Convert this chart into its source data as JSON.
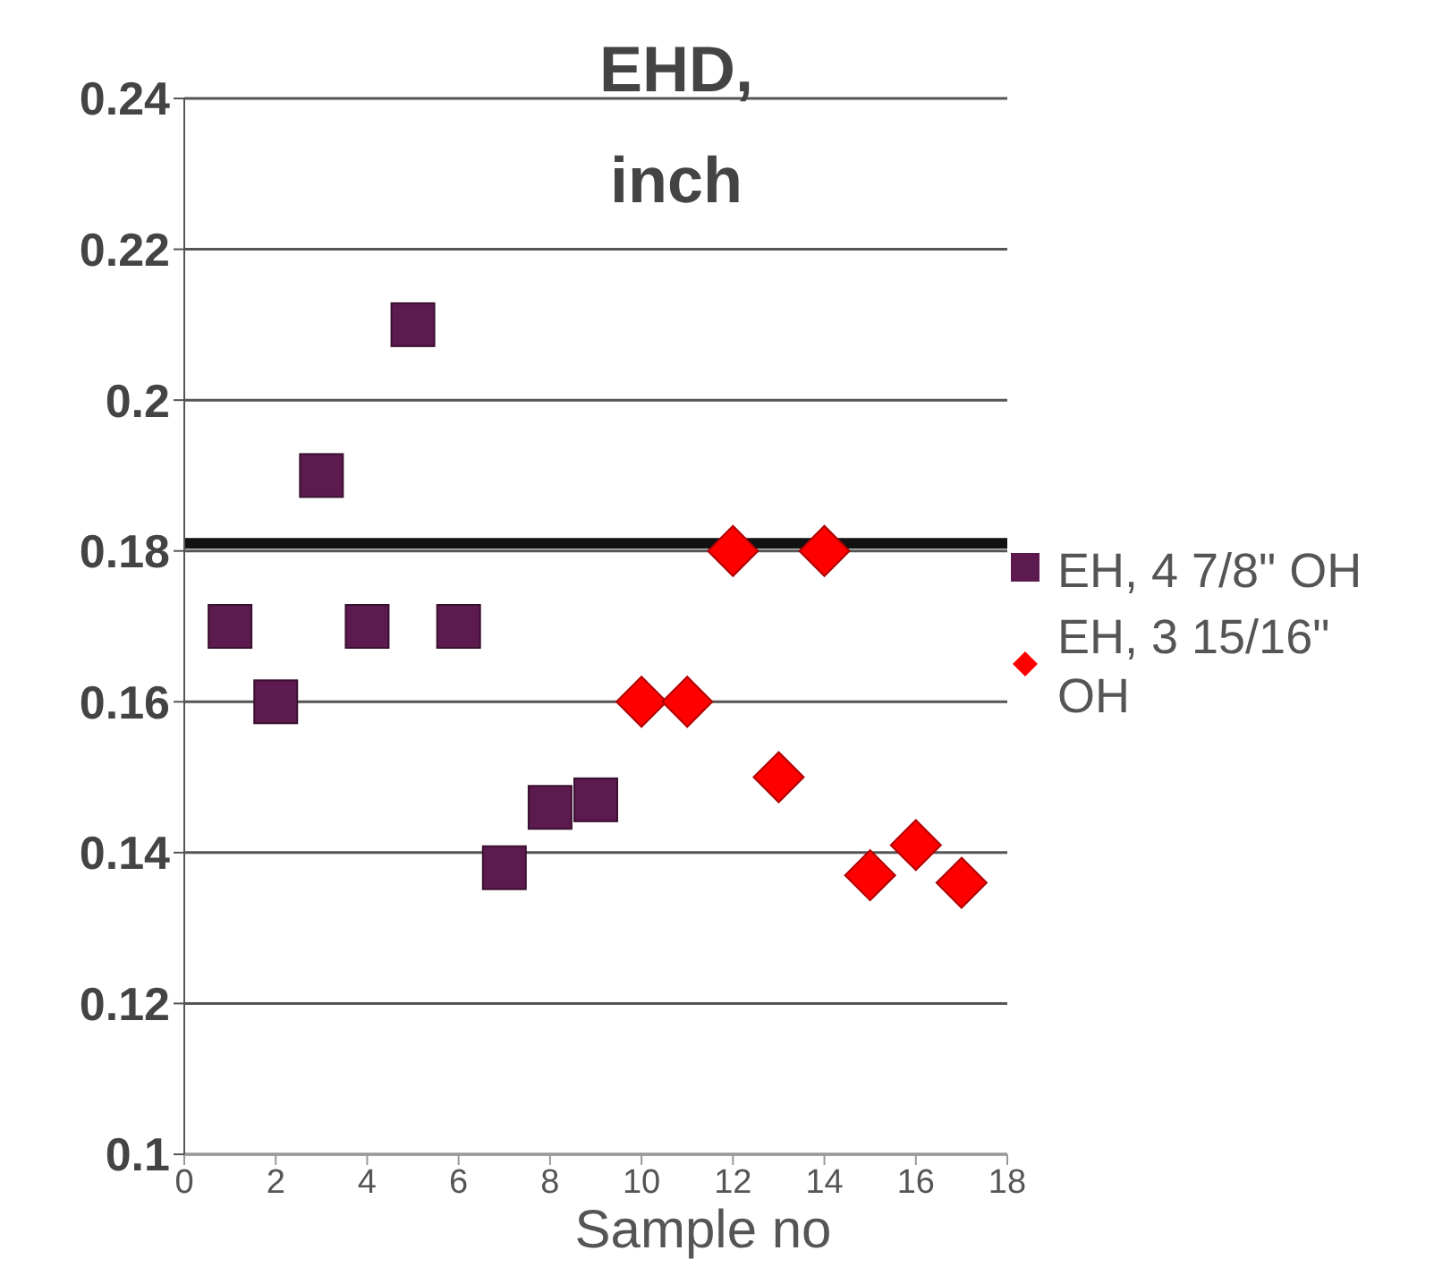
{
  "chart_data": {
    "type": "scatter",
    "title": "EHD, inch",
    "xlabel": "Sample no",
    "xlim": [
      0,
      18
    ],
    "xticks": [
      0,
      2,
      4,
      6,
      8,
      10,
      12,
      14,
      16,
      18
    ],
    "ylim": [
      0.1,
      0.24
    ],
    "yticks": [
      0.1,
      0.12,
      0.14,
      0.16,
      0.18,
      0.2,
      0.22,
      0.24
    ],
    "grid": "y",
    "legend": "right",
    "ref_lines": [
      {
        "axis": "y",
        "value": 0.181,
        "color": "#111111"
      }
    ],
    "series": [
      {
        "name": "EH, 4 7/8\" OH",
        "color": "#5c1a4f",
        "marker": "square",
        "x": [
          1,
          2,
          3,
          4,
          5,
          6,
          7,
          8,
          9
        ],
        "values": [
          0.17,
          0.16,
          0.19,
          0.17,
          0.21,
          0.17,
          0.138,
          0.146,
          0.147
        ]
      },
      {
        "name": "EH, 3 15/16\" OH",
        "color": "#ff0000",
        "marker": "diamond",
        "x": [
          10,
          11,
          12,
          13,
          14,
          15,
          16,
          17
        ],
        "values": [
          0.16,
          0.16,
          0.18,
          0.15,
          0.18,
          0.137,
          0.141,
          0.136
        ]
      }
    ]
  }
}
